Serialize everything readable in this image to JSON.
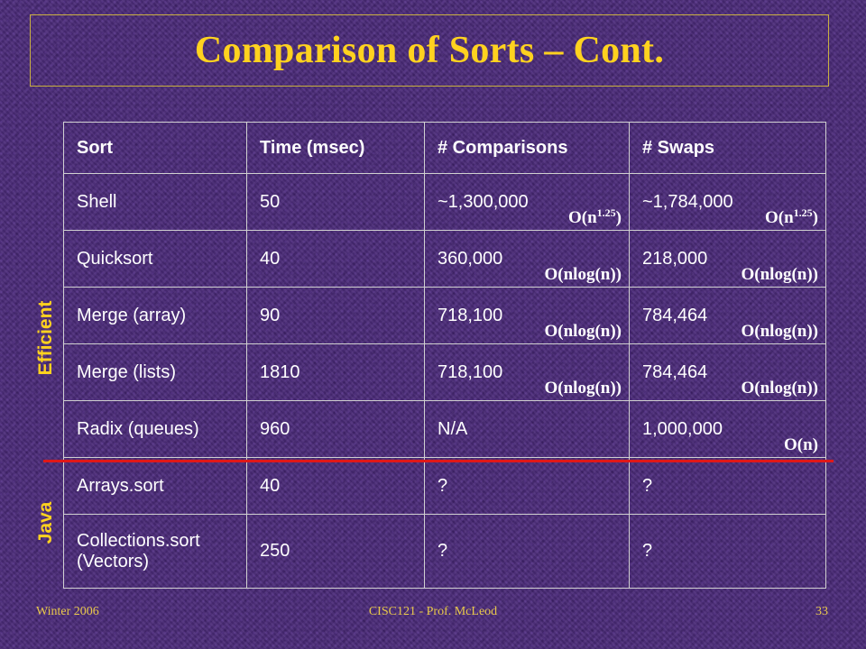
{
  "title": "Comparison of Sorts – Cont.",
  "side_labels": {
    "efficient": "Efficient",
    "java": "Java"
  },
  "table": {
    "headers": [
      "Sort",
      "Time (msec)",
      "# Comparisons",
      "# Swaps"
    ],
    "rows": [
      {
        "sort": "Shell",
        "time": "50",
        "comparisons": "~1,300,000",
        "comparisons_big_o": "O(n",
        "comparisons_exp": "1.25",
        "comparisons_close": ")",
        "swaps": "~1,784,000",
        "swaps_big_o": "O(n",
        "swaps_exp": "1.25",
        "swaps_close": ")"
      },
      {
        "sort": "Quicksort",
        "time": "40",
        "comparisons": "360,000",
        "comparisons_big_o": "O(nlog(n))",
        "swaps": "218,000",
        "swaps_big_o": "O(nlog(n))"
      },
      {
        "sort": "Merge (array)",
        "time": "90",
        "comparisons": "718,100",
        "comparisons_big_o": "O(nlog(n))",
        "swaps": "784,464",
        "swaps_big_o": "O(nlog(n))"
      },
      {
        "sort": "Merge (lists)",
        "time": "1810",
        "comparisons": "718,100",
        "comparisons_big_o": "O(nlog(n))",
        "swaps": "784,464",
        "swaps_big_o": "O(nlog(n))"
      },
      {
        "sort": "Radix (queues)",
        "time": "960",
        "comparisons": "N/A",
        "swaps": "1,000,000",
        "swaps_big_o": "O(n)"
      },
      {
        "sort": "Arrays.sort",
        "time": "40",
        "comparisons": "?",
        "swaps": "?"
      },
      {
        "sort": "Collections.sort",
        "sort_line2": "(Vectors)",
        "time": "250",
        "comparisons": "?",
        "swaps": "?"
      }
    ]
  },
  "footer": {
    "left": "Winter 2006",
    "center": "CISC121 - Prof. McLeod",
    "page": "33"
  },
  "colors": {
    "title": "#ffd21f",
    "divider": "#e01818",
    "background": "#4a2a78"
  }
}
